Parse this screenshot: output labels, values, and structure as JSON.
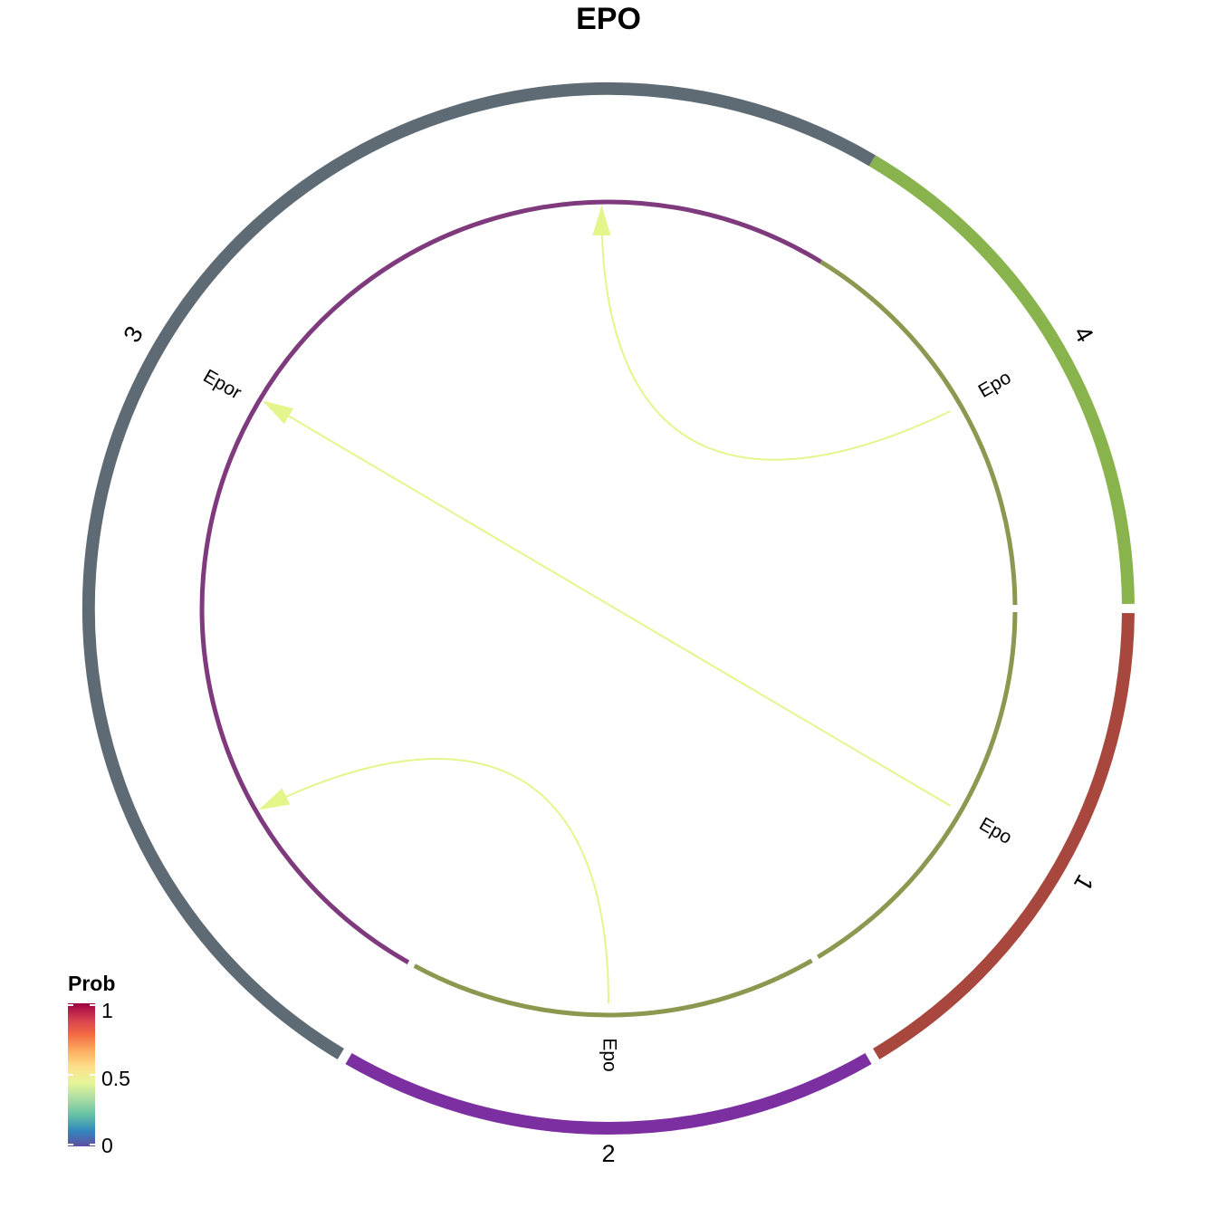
{
  "title": "EPO",
  "outer_sectors": [
    {
      "label": "4",
      "color": "#89b44d"
    },
    {
      "label": "1",
      "color": "#a7473d"
    },
    {
      "label": "2",
      "color": "#7b2fa0"
    },
    {
      "label": "3",
      "color": "#5f6b74"
    }
  ],
  "inner_sectors": [
    {
      "gene": "Epo",
      "color": "#8c974f"
    },
    {
      "gene": "Epo",
      "color": "#8c974f"
    },
    {
      "gene": "Epo",
      "color": "#8c974f"
    },
    {
      "gene": "Epor",
      "color": "#7e3a7d"
    }
  ],
  "links": [
    {
      "source": "4",
      "target": "3",
      "prob": 0.5,
      "color": "#e4f58c"
    },
    {
      "source": "1",
      "target": "3",
      "prob": 0.5,
      "color": "#e4f58c"
    },
    {
      "source": "2",
      "target": "3",
      "prob": 0.5,
      "color": "#e4f58c"
    }
  ],
  "legend": {
    "title": "Prob",
    "ticks": [
      "1",
      "0.5",
      "0"
    ],
    "colors": [
      "#5e4fa2",
      "#3288bd",
      "#66c2a5",
      "#abdda4",
      "#e6f598",
      "#fee08b",
      "#fdae61",
      "#f46d43",
      "#d53e4f",
      "#9e0142"
    ]
  }
}
